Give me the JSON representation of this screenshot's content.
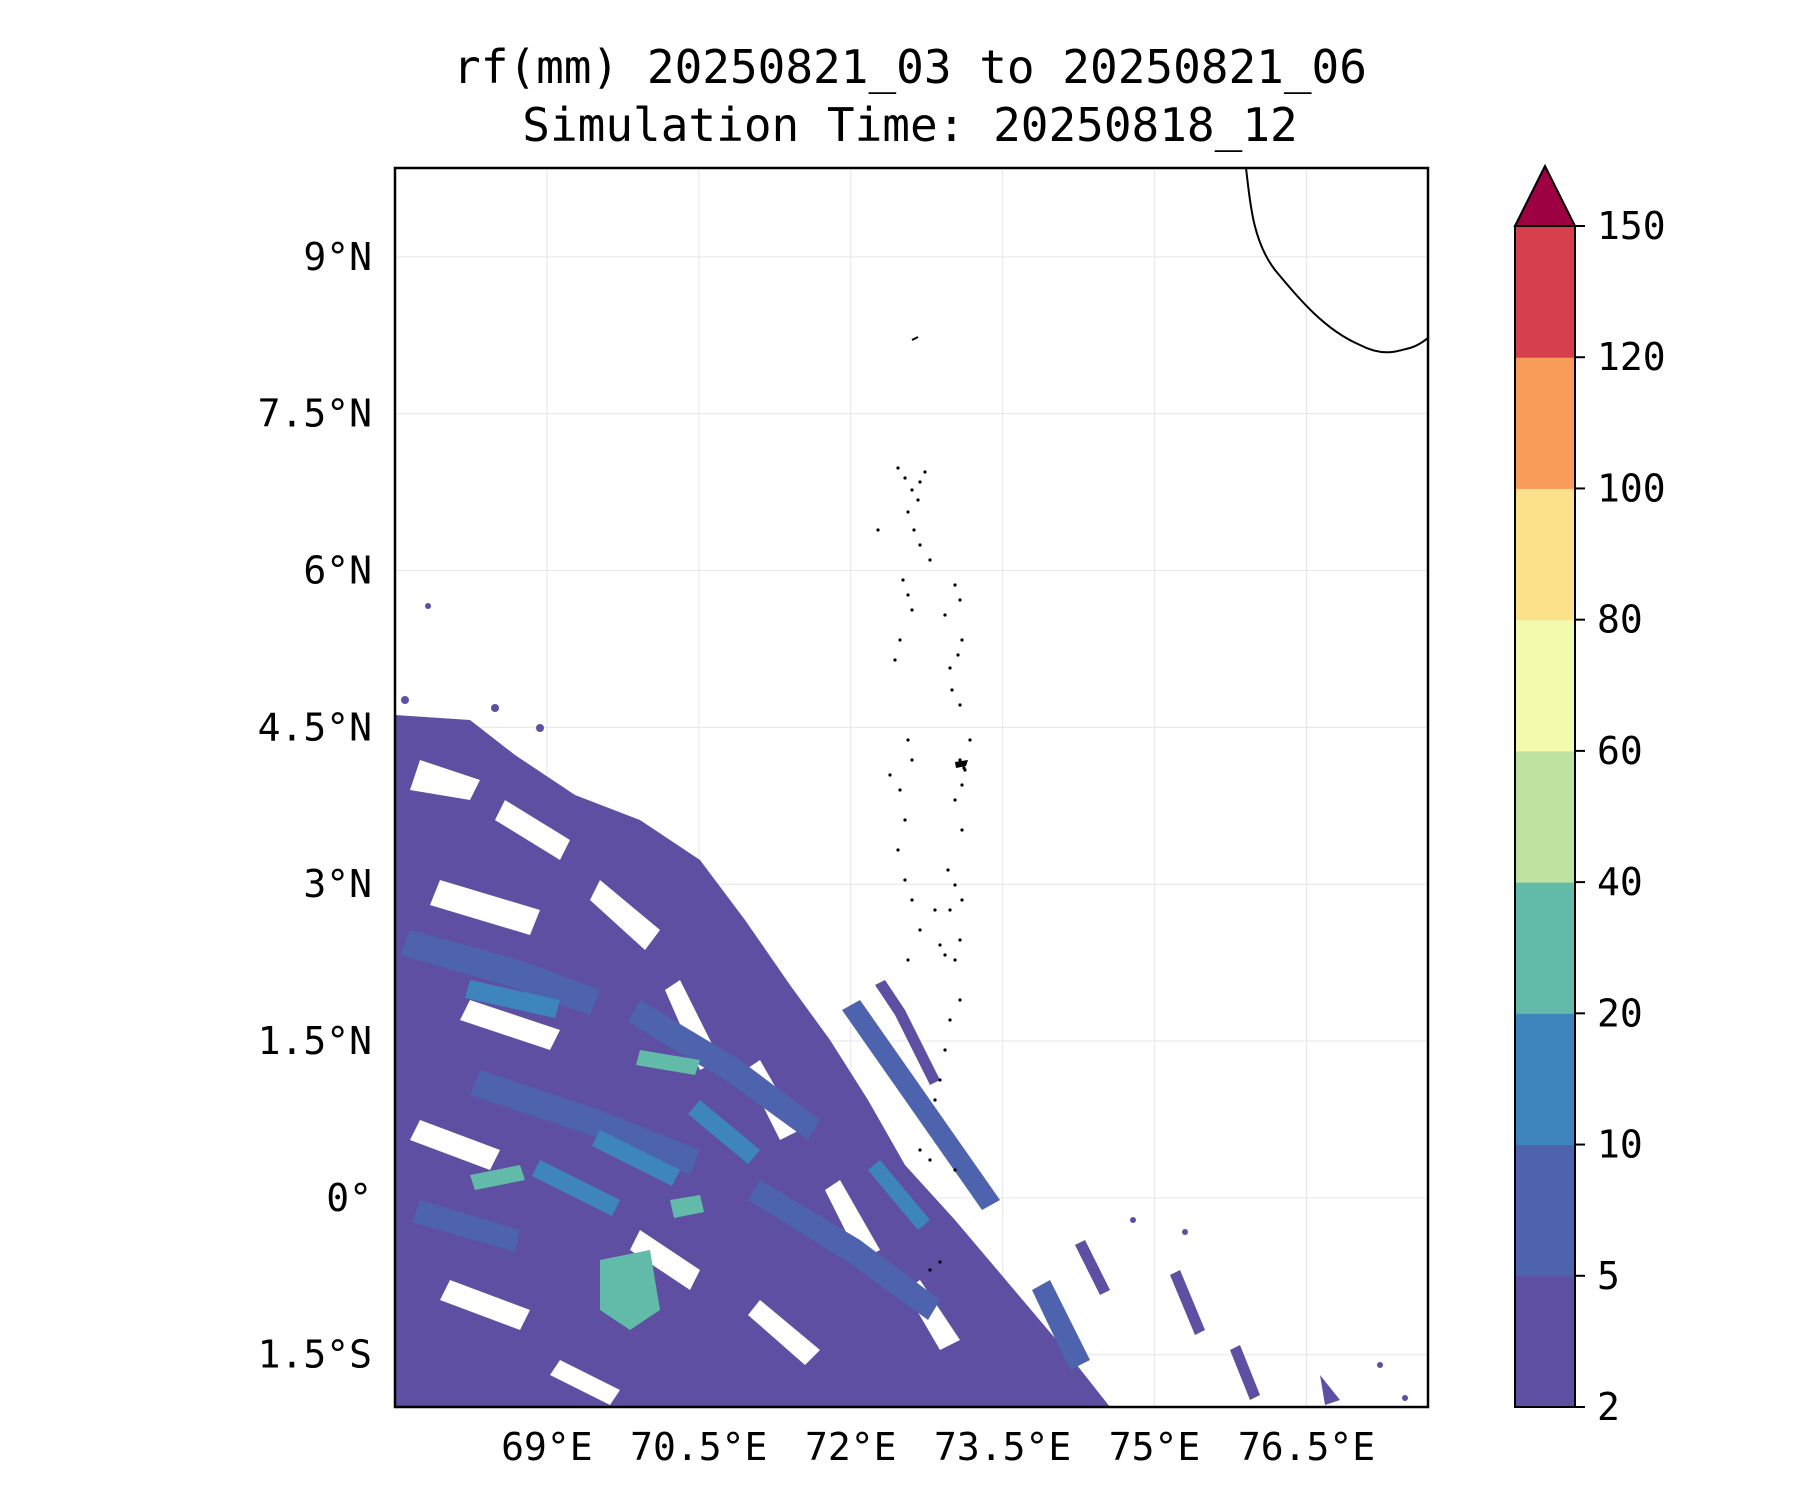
{
  "title": {
    "line1": "rf(mm) 20250821_03 to 20250821_06",
    "line2": "Simulation Time: 20250818_12"
  },
  "map": {
    "lon_range": [
      67.5,
      77.7
    ],
    "lat_range": [
      -2.0,
      9.85
    ],
    "lon_ticks": [
      {
        "value": 69.0,
        "label": "69°E"
      },
      {
        "value": 70.5,
        "label": "70.5°E"
      },
      {
        "value": 72.0,
        "label": "72°E"
      },
      {
        "value": 73.5,
        "label": "73.5°E"
      },
      {
        "value": 75.0,
        "label": "75°E"
      },
      {
        "value": 76.5,
        "label": "76.5°E"
      }
    ],
    "lat_ticks": [
      {
        "value": 9.0,
        "label": "9°N"
      },
      {
        "value": 7.5,
        "label": "7.5°N"
      },
      {
        "value": 6.0,
        "label": "6°N"
      },
      {
        "value": 4.5,
        "label": "4.5°N"
      },
      {
        "value": 3.0,
        "label": "3°N"
      },
      {
        "value": 1.5,
        "label": "1.5°N"
      },
      {
        "value": 0.0,
        "label": "0°"
      },
      {
        "value": -1.5,
        "label": "1.5°S"
      }
    ],
    "grid": true,
    "coastline_label": "",
    "rainfall_region": "southwest (bands, majority 2-10 mm, patches 20-40 mm)"
  },
  "colorbar": {
    "levels": [
      2,
      5,
      10,
      20,
      40,
      60,
      80,
      100,
      120,
      150
    ],
    "labels": [
      "2",
      "5",
      "10",
      "20",
      "40",
      "60",
      "80",
      "100",
      "120",
      "150"
    ],
    "colors": [
      "#5e4fa2",
      "#4e63ad",
      "#3e85bd",
      "#62bba9",
      "#bee3a0",
      "#f3f9ad",
      "#fde08a",
      "#f99b59",
      "#d53f4e",
      "#9e0142"
    ],
    "extend": "max"
  }
}
